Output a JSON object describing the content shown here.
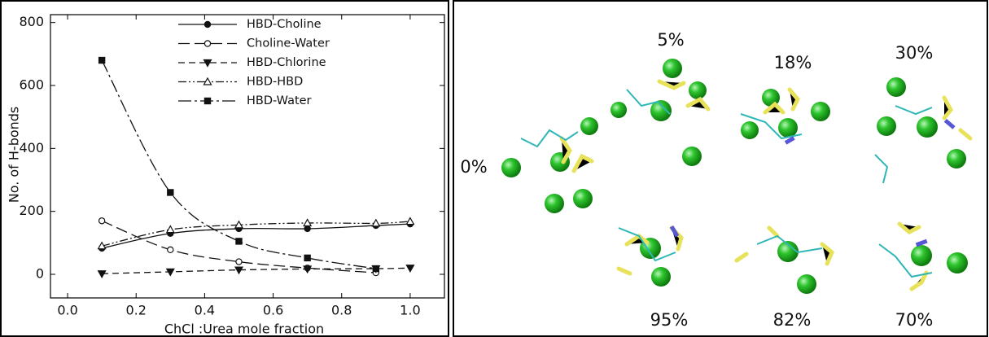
{
  "chart_data": {
    "type": "line",
    "x_label": "ChCl :Urea mole fraction",
    "y_label": "No. of H-bonds",
    "x": [
      0.1,
      0.3,
      0.5,
      0.7,
      0.9,
      1.0
    ],
    "series": [
      {
        "name": "HBD-Choline",
        "color": "#111111",
        "marker": "circle-filled",
        "linestyle": "solid",
        "values": [
          83,
          130,
          145,
          145,
          155,
          160
        ]
      },
      {
        "name": "Choline-Water",
        "color": "#111111",
        "marker": "circle-open",
        "linestyle": "long-dash",
        "values": [
          170,
          78,
          40,
          20,
          5,
          null
        ]
      },
      {
        "name": "HBD-Chlorine",
        "color": "#111111",
        "marker": "triangle-down-filled",
        "linestyle": "dashed",
        "values": [
          2,
          8,
          14,
          17,
          18,
          20
        ]
      },
      {
        "name": "HBD-HBD",
        "color": "#111111",
        "marker": "triangle-up-open",
        "linestyle": "dash-dot-dot",
        "values": [
          90,
          142,
          157,
          163,
          162,
          168
        ]
      },
      {
        "name": "HBD-Water",
        "color": "#111111",
        "marker": "square-filled",
        "linestyle": "long-dash-dot",
        "values": [
          680,
          260,
          105,
          52,
          18,
          null
        ]
      }
    ],
    "xlim": [
      -0.05,
      1.1
    ],
    "ylim": [
      -75,
      825
    ],
    "xticks": [
      {
        "value": 0,
        "label": "0.0"
      },
      0.2,
      0.4,
      0.6,
      0.8,
      {
        "value": 1,
        "label": "1.0"
      }
    ],
    "yticks": [
      0,
      200,
      400,
      600,
      800
    ],
    "legend": "upper center"
  },
  "snapshots": {
    "labels": [
      "0%",
      "5%",
      "18%",
      "30%",
      "95%",
      "82%",
      "70%"
    ]
  }
}
